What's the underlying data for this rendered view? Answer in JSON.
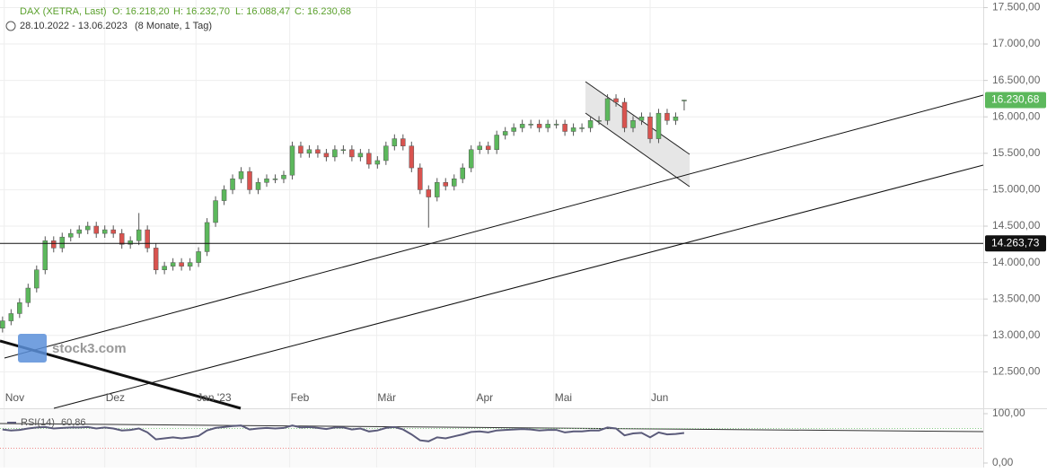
{
  "chart_data": {
    "type": "candlestick",
    "header": {
      "symbol": "DAX (XETRA, Last)",
      "o": "O: 16.218,20",
      "h": "H: 16.232,70",
      "l": "L: 16.088,47",
      "c": "C: 16.230,68",
      "range": "28.10.2022 - 13.06.2023",
      "duration": "(8 Monate, 1 Tag)"
    },
    "watermark": "stock3.com",
    "up_color": "#5cb85c",
    "down_color": "#d9534f",
    "open": [
      13100,
      13200,
      13300,
      13450,
      13650,
      13900,
      14300,
      14200,
      14350,
      14400,
      14450,
      14500,
      14400,
      14450,
      14400,
      14250,
      14300,
      14450,
      14200,
      13900,
      13950,
      14000,
      13950,
      14000,
      14150,
      14550,
      14850,
      15000,
      15150,
      15250,
      15000,
      15100,
      15150,
      15150,
      15200,
      15600,
      15500,
      15550,
      15500,
      15450,
      15550,
      15550,
      15450,
      15500,
      15350,
      15400,
      15600,
      15700,
      15600,
      15300,
      15000,
      14900,
      15100,
      15050,
      15150,
      15300,
      15550,
      15600,
      15550,
      15750,
      15800,
      15850,
      15900,
      15900,
      15850,
      15900,
      15900,
      15800,
      15850,
      15850,
      15950,
      15950,
      16250,
      16200,
      15850,
      15950,
      16000,
      15700,
      16050,
      15950,
      16218.2
    ],
    "high": [
      13260,
      13360,
      13510,
      13710,
      13960,
      14360,
      14360,
      14410,
      14460,
      14510,
      14560,
      14560,
      14510,
      14510,
      14460,
      14360,
      14680,
      14510,
      14260,
      14010,
      14060,
      14060,
      14060,
      14210,
      14610,
      14910,
      15060,
      15210,
      15310,
      15310,
      15160,
      15210,
      15210,
      15260,
      15660,
      15660,
      15610,
      15610,
      15560,
      15610,
      15610,
      15610,
      15560,
      15560,
      15460,
      15660,
      15760,
      15760,
      15660,
      15360,
      15060,
      15160,
      15160,
      15210,
      15360,
      15610,
      15660,
      15660,
      15810,
      15860,
      15910,
      15960,
      15960,
      15960,
      15960,
      15960,
      15960,
      15910,
      15910,
      16010,
      16010,
      16310,
      16310,
      16260,
      16010,
      16060,
      16060,
      16110,
      16110,
      16060,
      16232.7
    ],
    "low": [
      13040,
      13140,
      13240,
      13390,
      13590,
      13840,
      14140,
      14140,
      14290,
      14340,
      14390,
      14340,
      14340,
      14340,
      14190,
      14190,
      14240,
      14140,
      13840,
      13840,
      13890,
      13890,
      13890,
      13940,
      14090,
      14490,
      14790,
      14940,
      15090,
      14940,
      14940,
      15040,
      15090,
      15090,
      15140,
      15440,
      15440,
      15440,
      15390,
      15390,
      15490,
      15390,
      15390,
      15290,
      15290,
      15340,
      15540,
      15540,
      15240,
      14940,
      14480,
      14840,
      14990,
      14990,
      15090,
      15240,
      15490,
      15490,
      15490,
      15690,
      15740,
      15790,
      15840,
      15790,
      15790,
      15840,
      15740,
      15740,
      15790,
      15790,
      15890,
      15890,
      16140,
      15790,
      15790,
      15890,
      15640,
      15640,
      15890,
      15890,
      16088.47
    ],
    "close": [
      13200,
      13300,
      13450,
      13650,
      13900,
      14300,
      14200,
      14350,
      14400,
      14450,
      14500,
      14400,
      14450,
      14400,
      14250,
      14300,
      14450,
      14200,
      13900,
      13950,
      14000,
      13950,
      14000,
      14150,
      14550,
      14850,
      15000,
      15150,
      15250,
      15000,
      15100,
      15150,
      15150,
      15200,
      15600,
      15500,
      15550,
      15500,
      15450,
      15550,
      15550,
      15450,
      15500,
      15350,
      15400,
      15600,
      15700,
      15600,
      15300,
      15000,
      14900,
      15100,
      15050,
      15150,
      15300,
      15550,
      15600,
      15550,
      15750,
      15800,
      15850,
      15900,
      15900,
      15850,
      15900,
      15900,
      15800,
      15850,
      15850,
      15950,
      15950,
      16250,
      16200,
      15850,
      15950,
      16000,
      15700,
      16050,
      15950,
      16000,
      16230.68
    ],
    "xlim": [
      -0.3,
      115.1
    ],
    "xticks": [
      {
        "value": 0.2,
        "label": "Nov"
      },
      {
        "value": 12,
        "label": "Dez"
      },
      {
        "value": 22.7,
        "label": "Jan '23"
      },
      {
        "value": 33.7,
        "label": "Feb"
      },
      {
        "value": 43.9,
        "label": "Mär"
      },
      {
        "value": 55.5,
        "label": "Apr"
      },
      {
        "value": 64.7,
        "label": "Mai"
      },
      {
        "value": 76,
        "label": "Jun"
      }
    ],
    "ylim": [
      12000,
      17604
    ],
    "yticks": [
      {
        "value": 12500,
        "label": "12.500,00"
      },
      {
        "value": 13000,
        "label": "13.000,00"
      },
      {
        "value": 13500,
        "label": "13.500,00"
      },
      {
        "value": 14000,
        "label": "14.000,00"
      },
      {
        "value": 14500,
        "label": "14.500,00"
      },
      {
        "value": 15000,
        "label": "15.000,00"
      },
      {
        "value": 15500,
        "label": "15.500,00"
      },
      {
        "value": 16000,
        "label": "16.000,00"
      },
      {
        "value": 16500,
        "label": "16.500,00"
      },
      {
        "value": 17000,
        "label": "17.000,00"
      },
      {
        "value": 17500,
        "label": "17.500,00"
      }
    ],
    "grid": true,
    "hline": {
      "value": 14263.73,
      "label": "14.263,73"
    },
    "last_price": {
      "value": 16230.68,
      "label": "16.230,68"
    },
    "rsi": {
      "name": "RSI(14)",
      "last_label": "60,86",
      "color": "#5b5b7a",
      "values": [
        68,
        66,
        67,
        70,
        72,
        73,
        70,
        71,
        72,
        72,
        73,
        70,
        72,
        70,
        66,
        67,
        70,
        62,
        48,
        50,
        52,
        50,
        52,
        55,
        66,
        71,
        73,
        75,
        76,
        68,
        70,
        71,
        70,
        71,
        76,
        72,
        73,
        71,
        69,
        72,
        72,
        68,
        70,
        64,
        66,
        71,
        73,
        68,
        58,
        46,
        44,
        52,
        50,
        54,
        58,
        63,
        64,
        62,
        66,
        67,
        68,
        69,
        68,
        66,
        67,
        67,
        62,
        64,
        64,
        66,
        66,
        72,
        70,
        56,
        60,
        61,
        52,
        62,
        58,
        59,
        60.86
      ],
      "ylim": [
        0,
        100
      ],
      "yticks": [
        {
          "value": 100,
          "label": "100,00"
        },
        {
          "value": 0,
          "label": "0,00"
        }
      ],
      "levels": [
        30,
        70
      ]
    }
  }
}
